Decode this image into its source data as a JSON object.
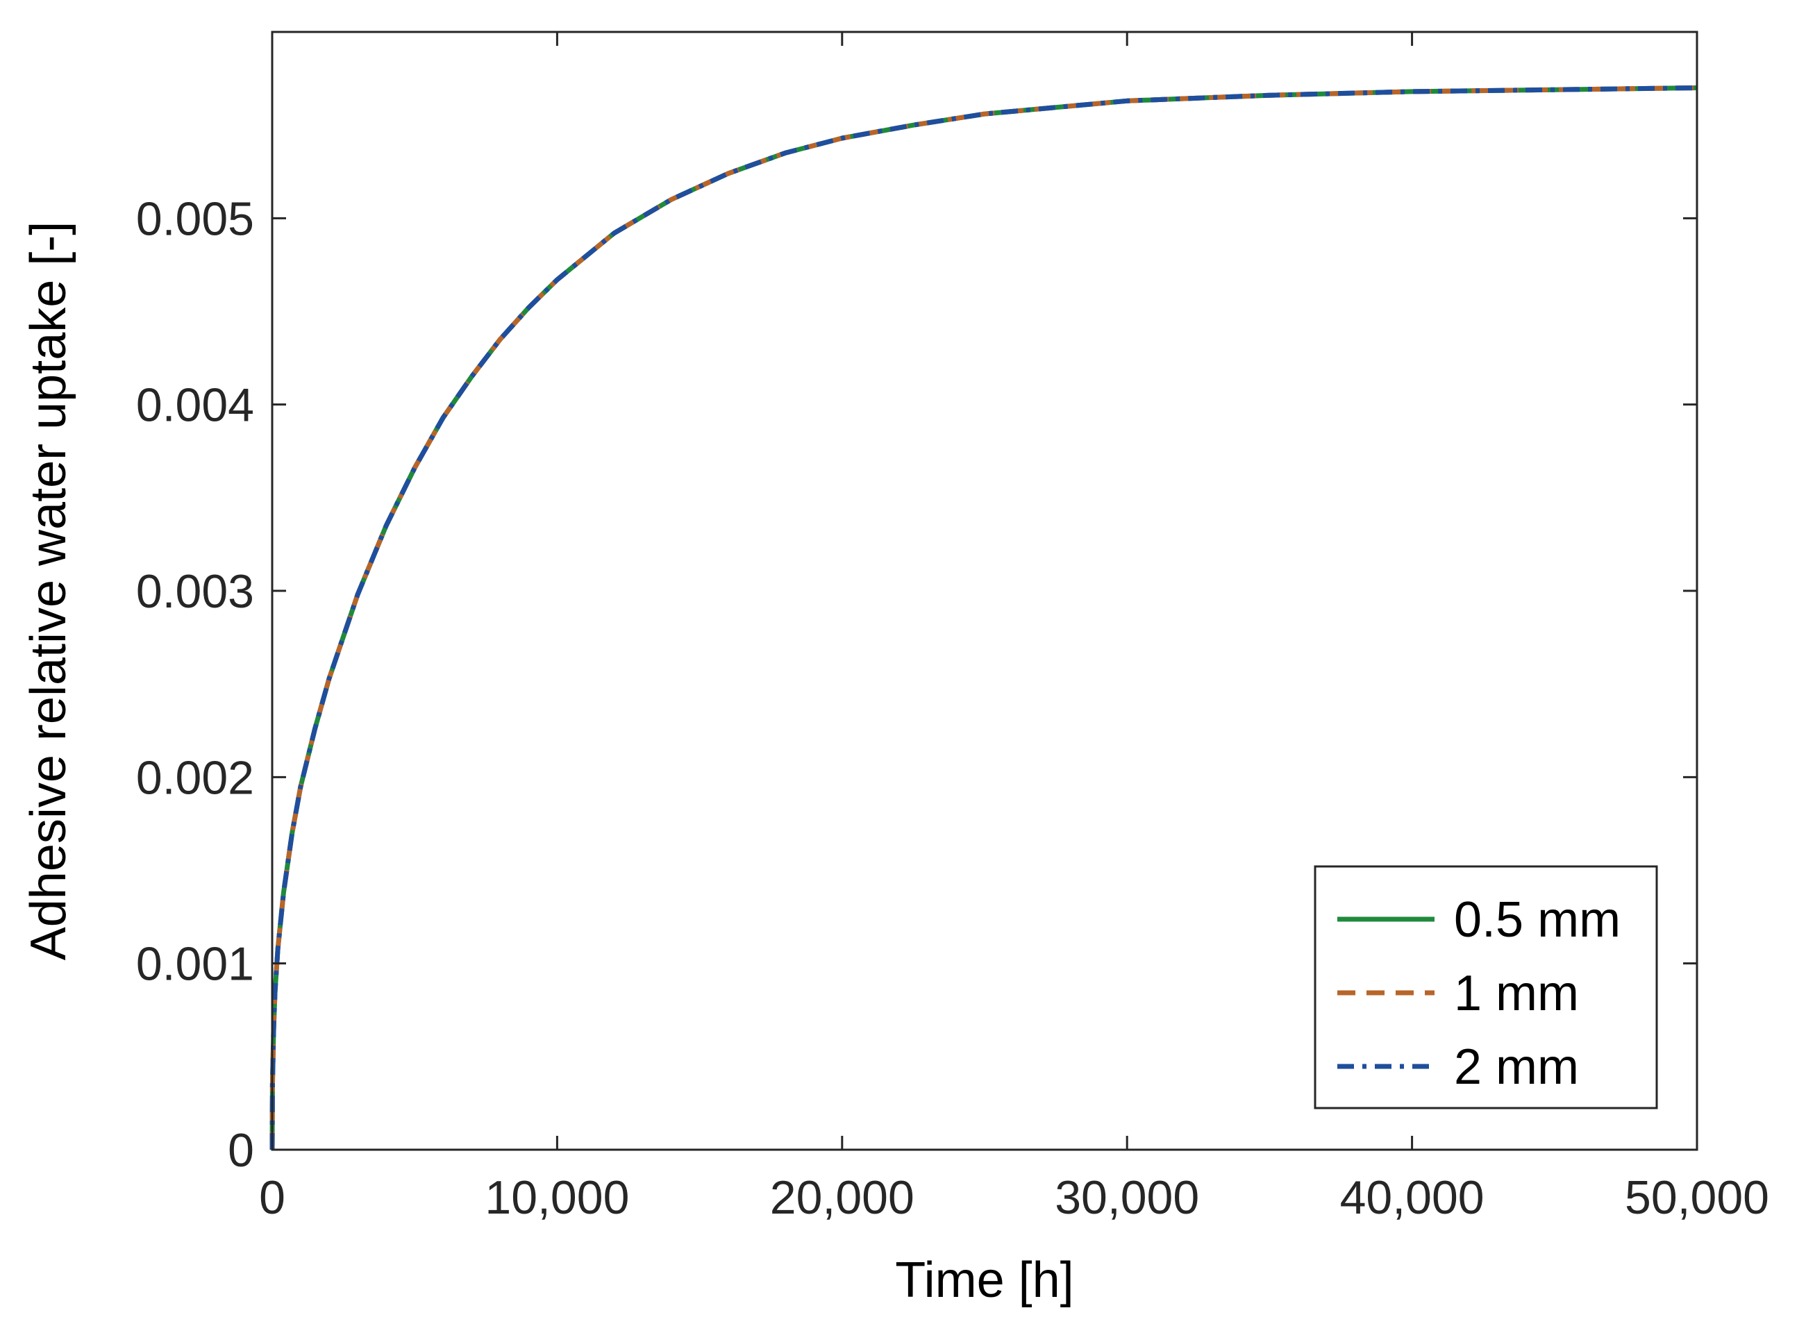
{
  "chart_data": {
    "type": "line",
    "title": "",
    "xlabel": "Time [h]",
    "ylabel": "Adhesive relative water uptake [-]",
    "xlim": [
      0,
      50000
    ],
    "ylim": [
      0,
      0.006
    ],
    "x_ticks": [
      0,
      10000,
      20000,
      30000,
      40000,
      50000
    ],
    "x_tick_labels": [
      "0",
      "10,000",
      "20,000",
      "30,000",
      "40,000",
      "50,000"
    ],
    "y_ticks": [
      0,
      0.001,
      0.002,
      0.003,
      0.004,
      0.005
    ],
    "y_tick_labels": [
      "0",
      "0.001",
      "0.002",
      "0.003",
      "0.004",
      "0.005"
    ],
    "grid": false,
    "legend_position": "bottom-right",
    "x": [
      0,
      10,
      50,
      100,
      200,
      400,
      700,
      1000,
      1500,
      2000,
      3000,
      4000,
      5000,
      6000,
      7000,
      8000,
      9000,
      10000,
      12000,
      14000,
      16000,
      18000,
      20000,
      22500,
      25000,
      30000,
      35000,
      40000,
      45000,
      50000
    ],
    "series": [
      {
        "name": "0.5 mm",
        "color": "#1f8a3c",
        "line_style": "solid",
        "values": [
          0,
          0.00035,
          0.00065,
          0.00085,
          0.00108,
          0.00138,
          0.0017,
          0.00195,
          0.00226,
          0.00253,
          0.00298,
          0.00335,
          0.00366,
          0.00393,
          0.00415,
          0.00435,
          0.00452,
          0.00467,
          0.00492,
          0.0051,
          0.00524,
          0.00535,
          0.00543,
          0.0055,
          0.00556,
          0.00563,
          0.00566,
          0.00568,
          0.00569,
          0.0057
        ]
      },
      {
        "name": "1 mm",
        "color": "#b8652a",
        "line_style": "dashed",
        "values": [
          0,
          0.00035,
          0.00065,
          0.00085,
          0.00108,
          0.00138,
          0.0017,
          0.00195,
          0.00226,
          0.00253,
          0.00298,
          0.00335,
          0.00366,
          0.00393,
          0.00415,
          0.00435,
          0.00452,
          0.00467,
          0.00492,
          0.0051,
          0.00524,
          0.00535,
          0.00543,
          0.0055,
          0.00556,
          0.00563,
          0.00566,
          0.00568,
          0.00569,
          0.0057
        ]
      },
      {
        "name": "2 mm",
        "color": "#1f4e9c",
        "line_style": "dash-dot",
        "values": [
          0,
          0.00035,
          0.00065,
          0.00085,
          0.00108,
          0.00138,
          0.0017,
          0.00195,
          0.00226,
          0.00253,
          0.00298,
          0.00335,
          0.00366,
          0.00393,
          0.00415,
          0.00435,
          0.00452,
          0.00467,
          0.00492,
          0.0051,
          0.00524,
          0.00535,
          0.00543,
          0.0055,
          0.00556,
          0.00563,
          0.00566,
          0.00568,
          0.00569,
          0.0057
        ]
      }
    ]
  }
}
